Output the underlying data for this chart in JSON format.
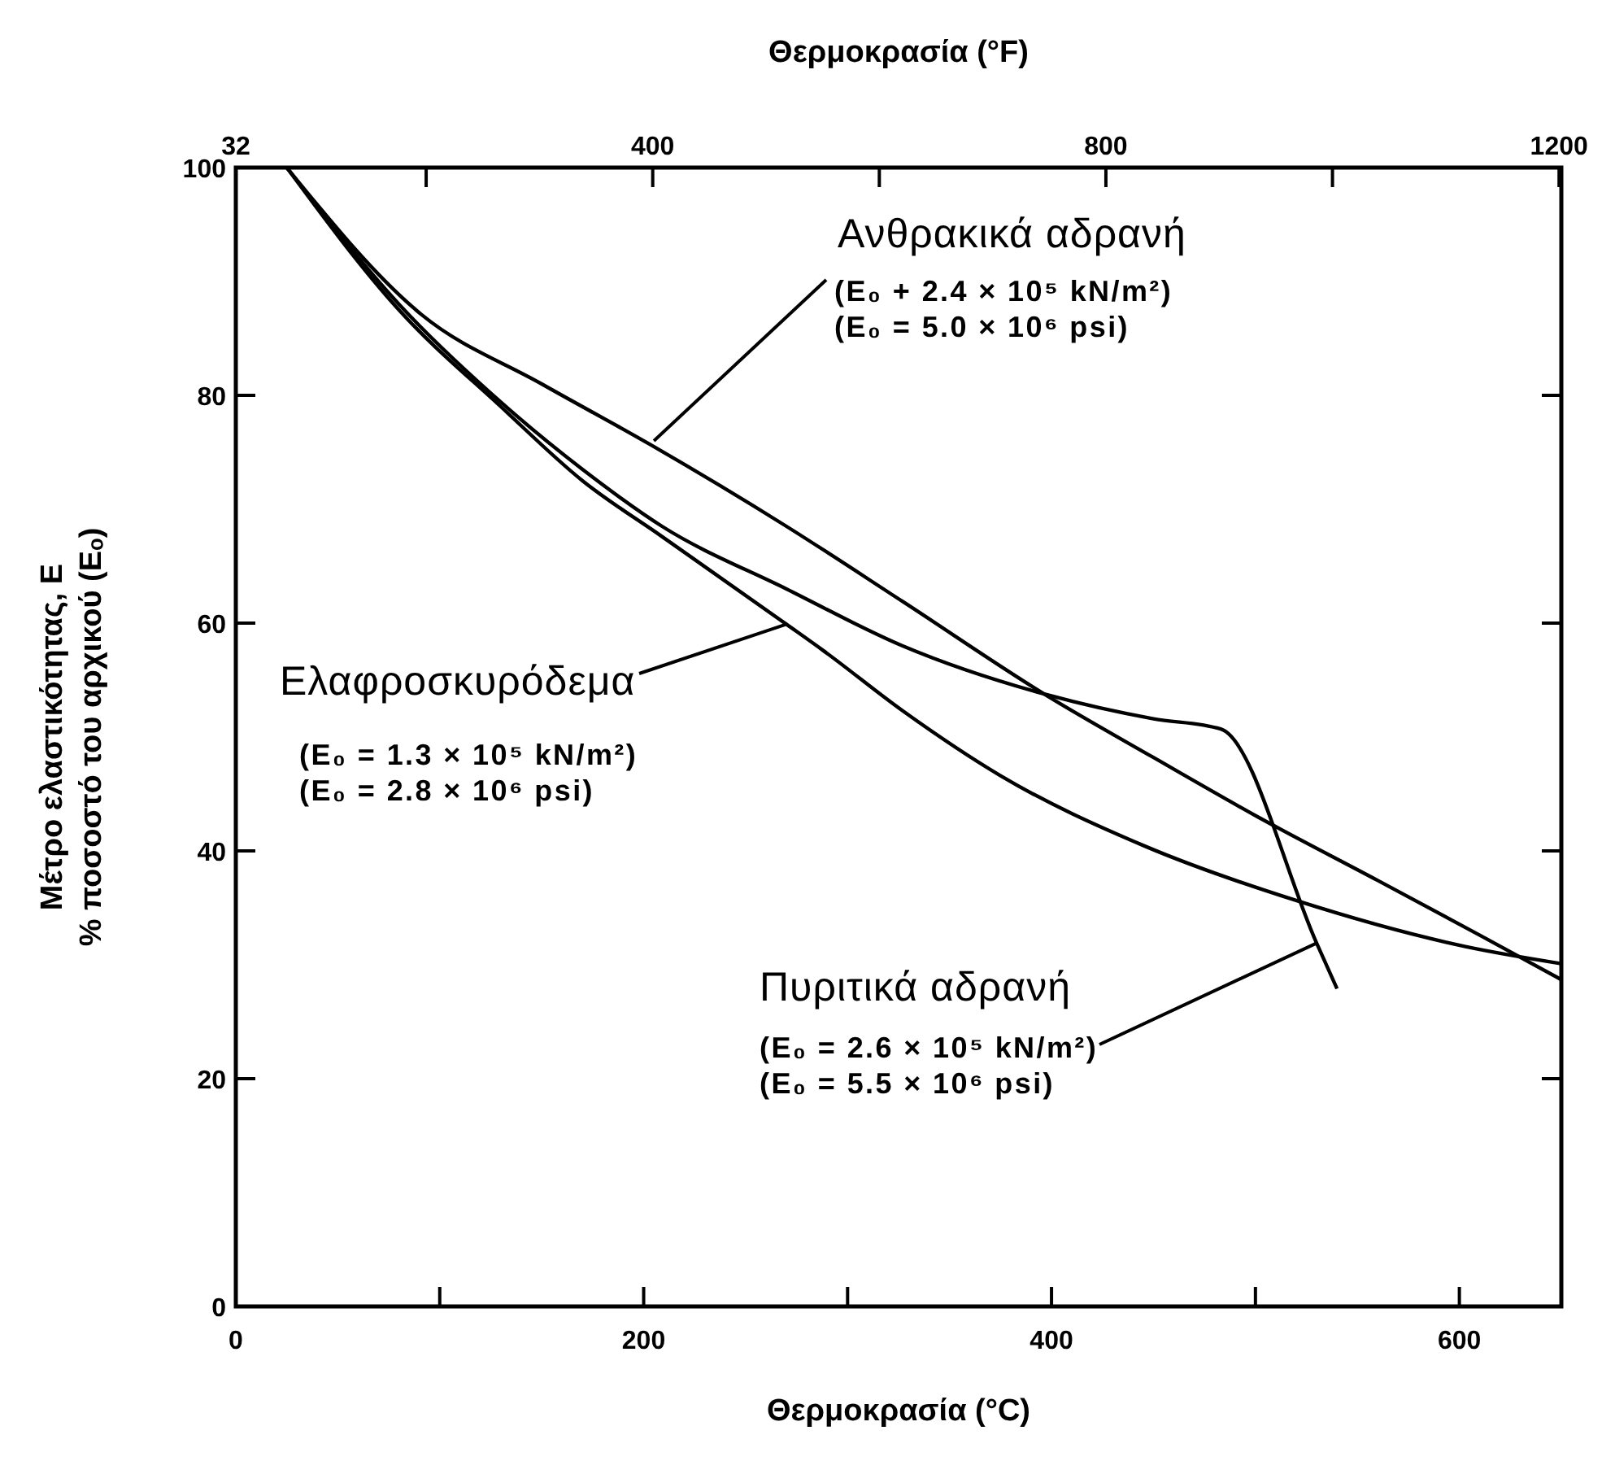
{
  "chart_data": {
    "type": "line",
    "xlabel": "Θερμοκρασία (°C)",
    "x2label": "Θερμοκρασία (°F)",
    "ylabel": "Μέτρο ελαστικότητας, Ε\n% ποσοστό του αρχικού (Eₒ)",
    "xlim": [
      0,
      650
    ],
    "xticks": [
      0,
      {
        "value": 100,
        "label": null
      },
      200,
      {
        "value": 300,
        "label": null
      },
      400,
      {
        "value": 500,
        "label": null
      },
      600
    ],
    "x2lim": [
      32,
      1202
    ],
    "x2ticks": [
      32,
      {
        "value": 200,
        "label": null
      },
      400,
      {
        "value": 600,
        "label": null
      },
      800,
      {
        "value": 1000,
        "label": null
      },
      1200
    ],
    "ylim": [
      0,
      100
    ],
    "yticks": [
      0,
      20,
      40,
      60,
      80,
      100
    ],
    "grid": false,
    "marker": "none",
    "line_style": "solid",
    "series": [
      {
        "color": "#000000",
        "x": [
          25,
          91,
          150,
          203,
          270,
          327,
          398,
          450,
          501,
          560,
          610,
          650
        ],
        "values": [
          100,
          87.1,
          81,
          75.7,
          68.5,
          61.9,
          53.6,
          48.2,
          43,
          37.4,
          32.6,
          28.7
        ]
      },
      {
        "color": "#000000",
        "x": [
          25,
          80,
          130,
          170,
          209,
          270,
          327,
          398,
          450,
          483,
          530,
          540
        ],
        "values": [
          100,
          88,
          79.4,
          73.5,
          68.5,
          63,
          58,
          53.7,
          51.6,
          50.7,
          31.9,
          27.9
        ]
      },
      {
        "color": "#000000",
        "x": [
          25,
          80,
          130,
          170,
          209,
          270,
          288,
          327,
          375,
          446,
          519,
          603,
          650
        ],
        "values": [
          100,
          87.5,
          79,
          72.5,
          67.6,
          59.9,
          57.6,
          52.3,
          46.6,
          40.4,
          35.7,
          31.6,
          30.1
        ]
      }
    ],
    "annotations": [
      {
        "text": "Ανθρακικά αδρανή\n(E₀ + 2.4 × 10⁵ kN/m²)\n(E₀ = 5.0 × 10⁶ psi)",
        "x": 205,
        "y": 76
      },
      {
        "text": "Ελαφροσκυρόδεμα\n(E₀ = 1.3 × 10⁵ kN/m²)\n(E₀ = 2.8 × 10⁶ psi)",
        "x": 270,
        "y": 59.9
      },
      {
        "text": "Πυριτικά αδρανή\n(E₀ = 2.6 × 10⁵ kN/m²)\n(E₀ = 5.5 × 10⁶ psi)",
        "x": 530,
        "y": 31.9
      }
    ]
  }
}
